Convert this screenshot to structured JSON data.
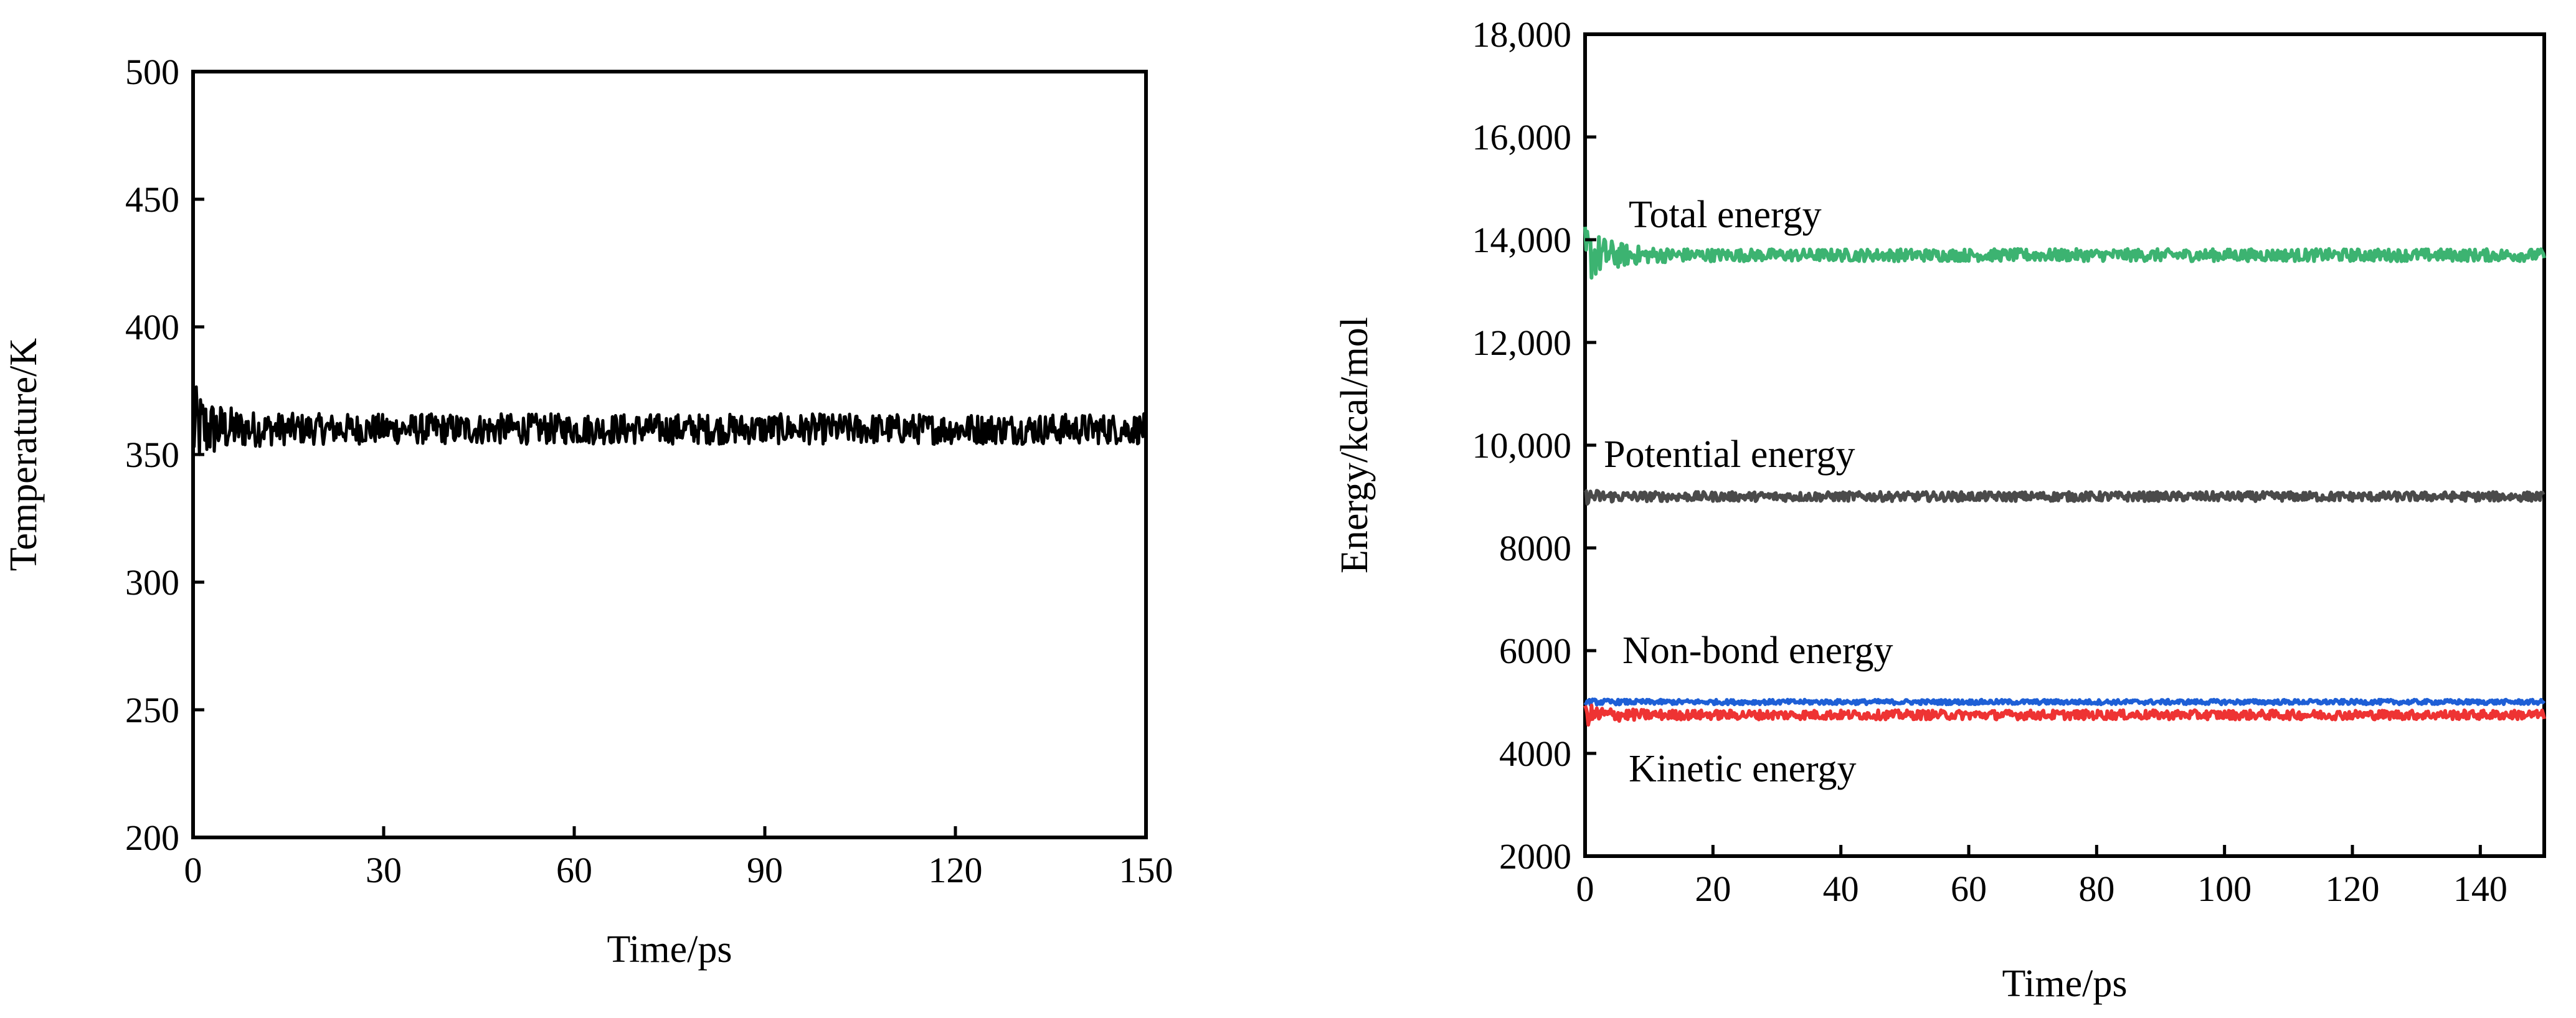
{
  "chart_data": [
    {
      "type": "line",
      "xlabel": "Time/ps",
      "ylabel": "Temperature/K",
      "xlim": [
        0,
        150
      ],
      "ylim": [
        200,
        500
      ],
      "xticks": [
        0,
        30,
        60,
        90,
        120,
        150
      ],
      "yticks": [
        200,
        250,
        300,
        350,
        400,
        450,
        500
      ],
      "xtick_labels": [
        "0",
        "30",
        "60",
        "90",
        "120",
        "150"
      ],
      "ytick_labels": [
        "200",
        "250",
        "300",
        "350",
        "400",
        "450",
        "500"
      ],
      "grid": false,
      "legend": "none",
      "series": [
        {
          "color": "#000000",
          "mean": 360,
          "initial_fluctuation": 18,
          "steady_fluctuation": 6,
          "x": [
            0,
            150
          ]
        }
      ]
    },
    {
      "type": "line",
      "xlabel": "Time/ps",
      "ylabel": "Energy/kcal/mol",
      "xlim": [
        0,
        150
      ],
      "ylim": [
        2000,
        18000
      ],
      "xticks": [
        0,
        20,
        40,
        60,
        80,
        100,
        120,
        140
      ],
      "yticks": [
        2000,
        4000,
        6000,
        8000,
        10000,
        12000,
        14000,
        16000,
        18000
      ],
      "xtick_labels": [
        "0",
        "20",
        "40",
        "60",
        "80",
        "100",
        "120",
        "140"
      ],
      "ytick_labels": [
        "2000",
        "4000",
        "6000",
        "8000",
        "10,000",
        "12,000",
        "14,000",
        "16,000",
        "18,000"
      ],
      "grid": false,
      "legend": "inline-labels",
      "series": [
        {
          "name": "Total energy",
          "color": "#3cb371",
          "mean": 13700,
          "initial_fluctuation": 600,
          "steady_fluctuation": 120
        },
        {
          "name": "Potential energy",
          "color": "#4a4a4a",
          "mean": 9000,
          "initial_fluctuation": 150,
          "steady_fluctuation": 90
        },
        {
          "name": "Non-bond energy",
          "color": "#1e5fd6",
          "mean": 5000,
          "initial_fluctuation": 60,
          "steady_fluctuation": 45
        },
        {
          "name": "Kinetic energy",
          "color": "#ee3333",
          "mean": 4750,
          "initial_fluctuation": 220,
          "steady_fluctuation": 90
        }
      ]
    }
  ]
}
